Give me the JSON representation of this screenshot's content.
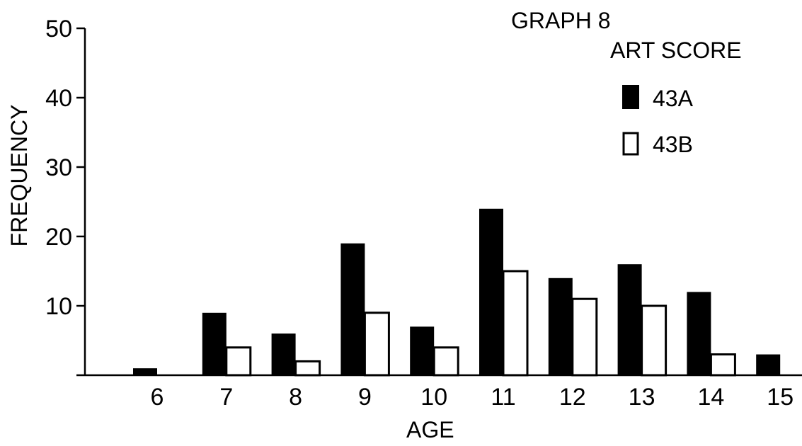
{
  "chart_data": {
    "type": "bar",
    "title": "GRAPH 8",
    "subtitle": "ART SCORE",
    "xlabel": "AGE",
    "ylabel": "FREQUENCY",
    "categories": [
      "6",
      "7",
      "8",
      "9",
      "10",
      "11",
      "12",
      "13",
      "14",
      "15"
    ],
    "series": [
      {
        "name": "43A",
        "color": "#000000",
        "fill": "solid",
        "values": [
          1,
          9,
          6,
          19,
          7,
          24,
          14,
          16,
          12,
          3
        ]
      },
      {
        "name": "43B",
        "color": "#ffffff",
        "fill": "outline",
        "values": [
          0,
          4,
          2,
          9,
          4,
          15,
          11,
          10,
          3,
          0
        ]
      }
    ],
    "ylim": [
      0,
      50
    ],
    "yticks": [
      10,
      20,
      30,
      40,
      50
    ],
    "ytick_labels": [
      "10",
      "20",
      "30",
      "40",
      "50"
    ],
    "grid": false,
    "legend_position": "top-right"
  }
}
